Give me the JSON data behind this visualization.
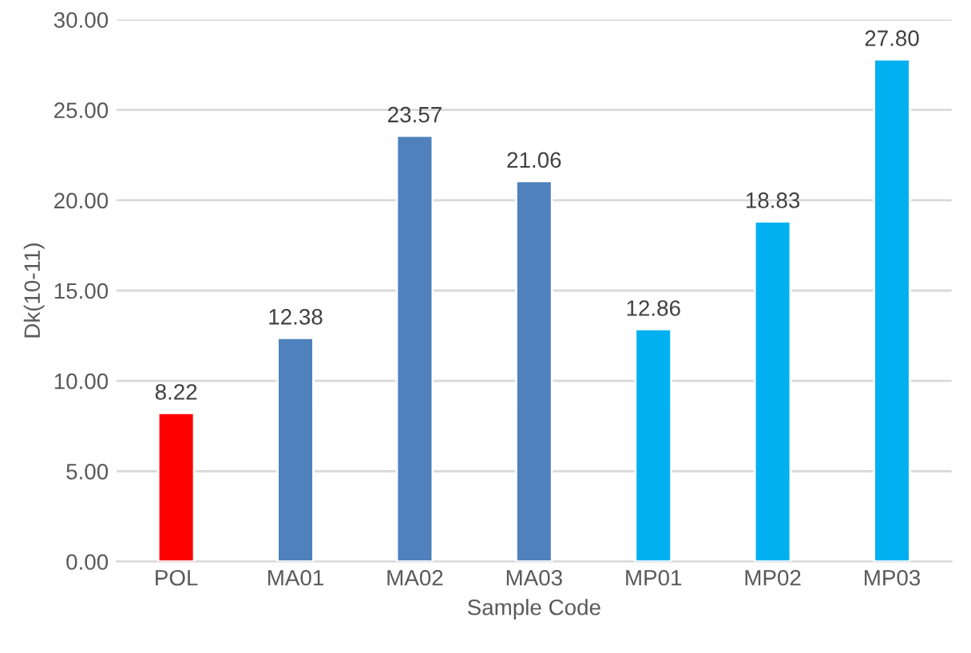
{
  "chart_data": {
    "type": "bar",
    "xlabel": "Sample Code",
    "ylabel": "Dk(10-11)",
    "categories": [
      "POL",
      "MA01",
      "MA02",
      "MA03",
      "MP01",
      "MP02",
      "MP03"
    ],
    "values": [
      8.22,
      12.38,
      23.57,
      21.06,
      12.86,
      18.83,
      27.8
    ],
    "value_labels": [
      "8.22",
      "12.38",
      "23.57",
      "21.06",
      "12.86",
      "18.83",
      "27.80"
    ],
    "colors": [
      "#ff0000",
      "#4f81bd",
      "#4f81bd",
      "#4f81bd",
      "#00b0f0",
      "#00b0f0",
      "#00b0f0"
    ],
    "ylim": [
      0,
      30
    ],
    "yticks": [
      {
        "value": 0,
        "label": "0.00"
      },
      {
        "value": 5,
        "label": "5.00"
      },
      {
        "value": 10,
        "label": "10.00"
      },
      {
        "value": 15,
        "label": "15.00"
      },
      {
        "value": 20,
        "label": "20.00"
      },
      {
        "value": 25,
        "label": "25.00"
      },
      {
        "value": 30,
        "label": "30.00"
      }
    ],
    "grid": "y"
  }
}
